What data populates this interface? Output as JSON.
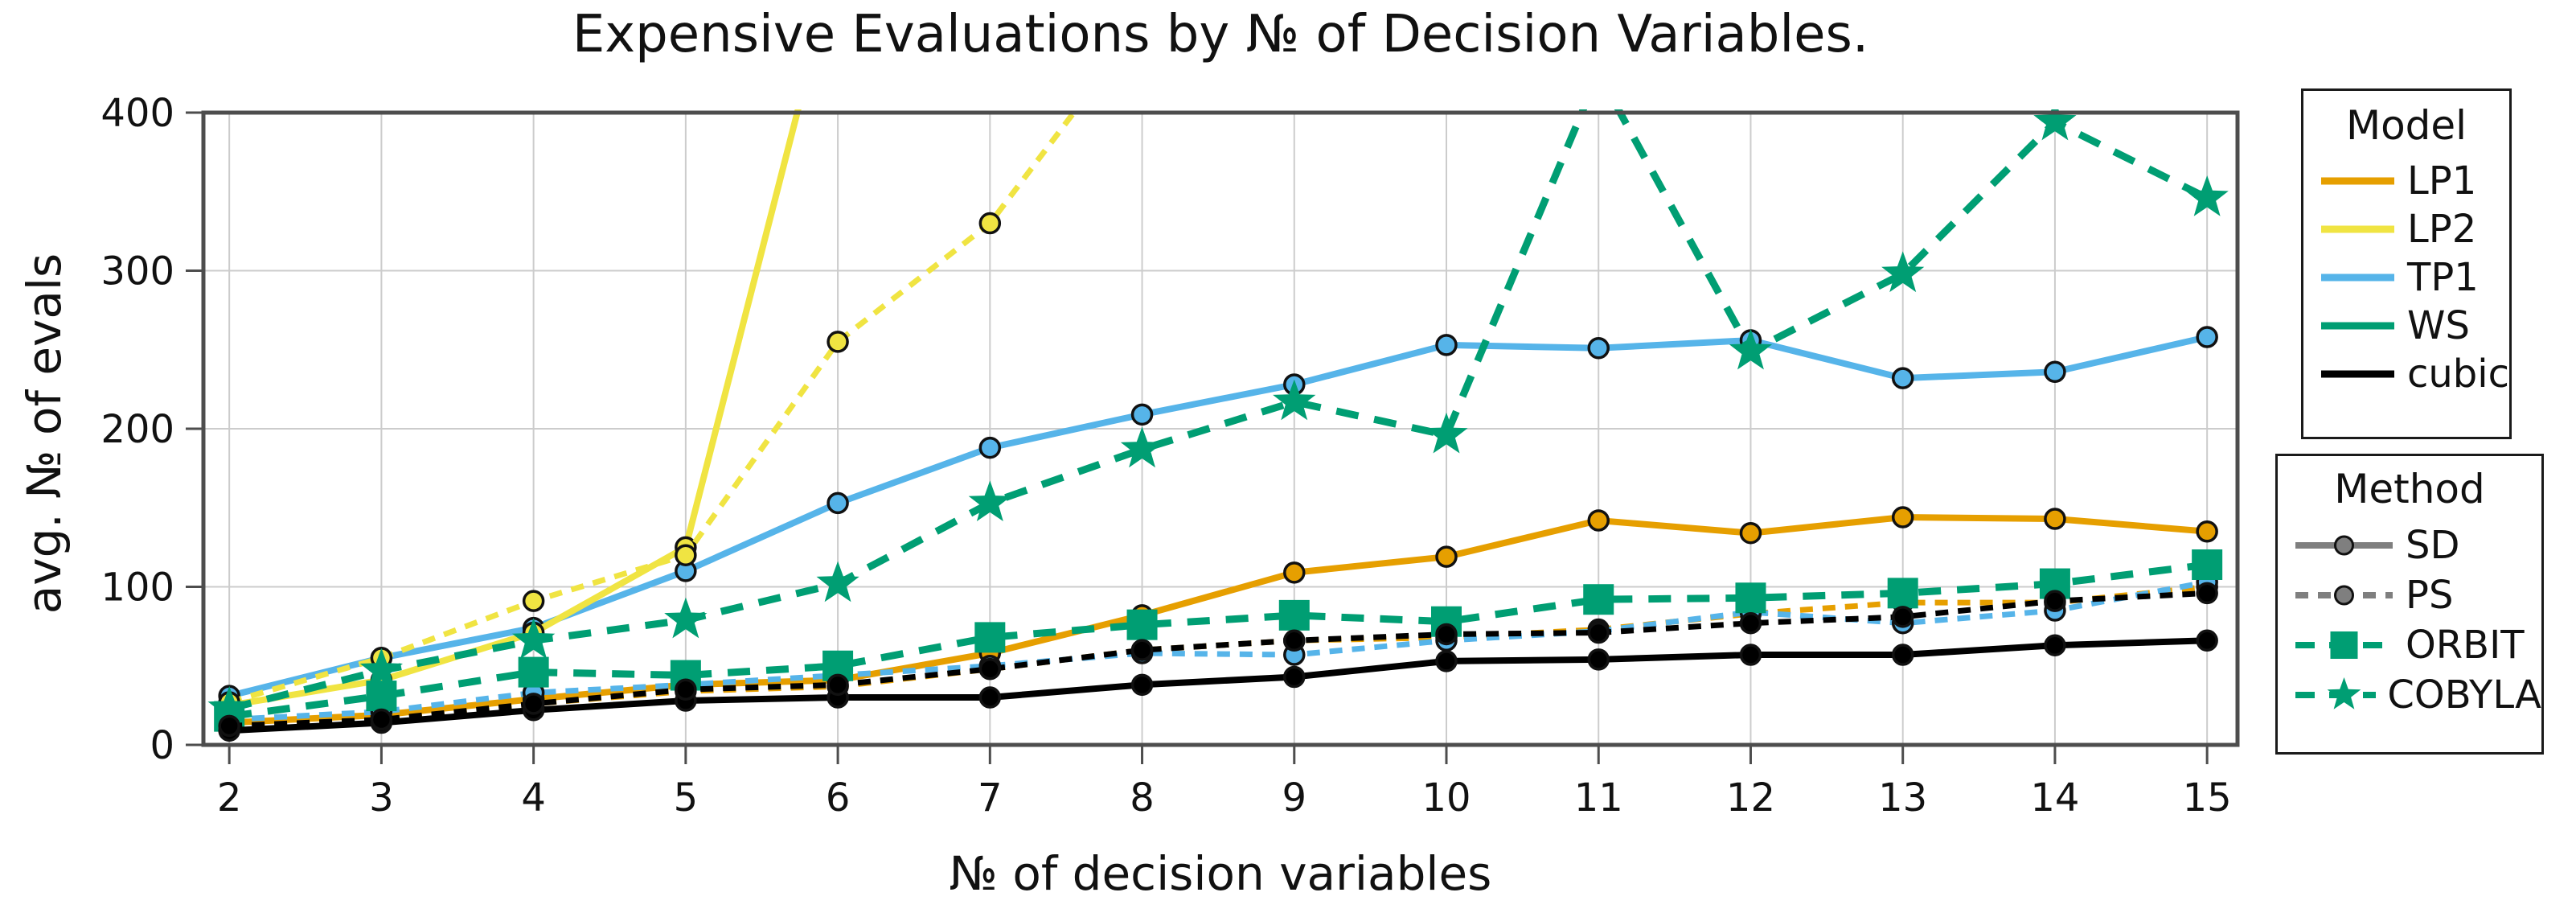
{
  "title": "Expensive Evaluations by № of Decision Variables.",
  "axes": {
    "xlabel": "№ of decision variables",
    "ylabel": "avg. № of evals",
    "x_ticks": [
      2,
      3,
      4,
      5,
      6,
      7,
      8,
      9,
      10,
      11,
      12,
      13,
      14,
      15
    ],
    "y_ticks": [
      0,
      100,
      200,
      300,
      400
    ],
    "xlim": [
      1.83,
      15.2
    ],
    "ylim": [
      0,
      400
    ]
  },
  "colors": {
    "LP1": "#E69F00",
    "LP2": "#F0E442",
    "TP1": "#56B4E9",
    "WS": "#009E73",
    "cubic": "#000000",
    "method_gray": "#7f7f7f",
    "grid": "#cccccc",
    "spine": "#4d4d4d"
  },
  "legends": {
    "model": {
      "title": "Model",
      "entries": [
        {
          "label": "LP1",
          "color": "#E69F00",
          "style": "solid",
          "marker": "none"
        },
        {
          "label": "LP2",
          "color": "#F0E442",
          "style": "solid",
          "marker": "none"
        },
        {
          "label": "TP1",
          "color": "#56B4E9",
          "style": "solid",
          "marker": "none"
        },
        {
          "label": "WS",
          "color": "#009E73",
          "style": "solid",
          "marker": "none"
        },
        {
          "label": "cubic",
          "color": "#000000",
          "style": "solid",
          "marker": "none"
        }
      ]
    },
    "method": {
      "title": "Method",
      "entries": [
        {
          "label": "SD",
          "color": "#7f7f7f",
          "style": "solid",
          "marker": "circle"
        },
        {
          "label": "PS",
          "color": "#7f7f7f",
          "style": "dashed",
          "marker": "circle"
        },
        {
          "label": "ORBIT",
          "color": "#009E73",
          "style": "dashed-long",
          "marker": "square"
        },
        {
          "label": "COBYLA",
          "color": "#009E73",
          "style": "dashed-long",
          "marker": "star"
        }
      ]
    }
  },
  "chart_data": {
    "type": "line",
    "x": [
      2,
      3,
      4,
      5,
      6,
      7,
      8,
      9,
      10,
      11,
      12,
      13,
      14,
      15
    ],
    "grid": true,
    "note_offscale": "values above 400 are clipped by the axes (LP2 curves and COBYLA at 11 leave the plot)",
    "series": [
      {
        "id": "tp1_sd",
        "label": "TP1 + SD",
        "model": "TP1",
        "method": "SD",
        "color": "#56B4E9",
        "style": "solid",
        "marker": "circle",
        "values": [
          31,
          55,
          74,
          110,
          153,
          188,
          209,
          228,
          253,
          251,
          256,
          232,
          236,
          258
        ]
      },
      {
        "id": "lp2_sd",
        "label": "LP2 + SD",
        "model": "LP2",
        "method": "SD",
        "color": "#F0E442",
        "style": "solid",
        "marker": "circle",
        "values": [
          25,
          41,
          71,
          125,
          500,
          null,
          null,
          null,
          null,
          null,
          null,
          null,
          null,
          null
        ]
      },
      {
        "id": "lp2_ps",
        "label": "LP2 + PS",
        "model": "LP2",
        "method": "PS",
        "color": "#F0E442",
        "style": "dashed",
        "marker": "circle",
        "values": [
          27,
          55,
          91,
          120,
          255,
          330,
          457,
          null,
          null,
          null,
          null,
          null,
          null,
          null
        ]
      },
      {
        "id": "lp1_sd",
        "label": "LP1 + SD",
        "model": "LP1",
        "method": "SD",
        "color": "#E69F00",
        "style": "solid",
        "marker": "circle",
        "values": [
          14,
          19,
          29,
          38,
          41,
          58,
          82,
          109,
          119,
          142,
          134,
          144,
          143,
          135
        ]
      },
      {
        "id": "lp1_ps",
        "label": "LP1 + PS",
        "model": "LP1",
        "method": "PS",
        "color": "#E69F00",
        "style": "dashed",
        "marker": "circle",
        "values": [
          13,
          17,
          26,
          34,
          37,
          48,
          60,
          66,
          68,
          73,
          83,
          90,
          90,
          100
        ]
      },
      {
        "id": "tp1_ps",
        "label": "TP1 + PS",
        "model": "TP1",
        "method": "PS",
        "color": "#56B4E9",
        "style": "dashed",
        "marker": "circle",
        "values": [
          16,
          21,
          33,
          38,
          44,
          50,
          58,
          57,
          66,
          72,
          84,
          77,
          85,
          103
        ]
      },
      {
        "id": "ws_orbit",
        "label": "ORBIT",
        "model": "WS",
        "method": "ORBIT",
        "color": "#009E73",
        "style": "dashed-long",
        "marker": "square",
        "values": [
          18,
          31,
          46,
          44,
          50,
          68,
          76,
          82,
          78,
          92,
          93,
          96,
          102,
          114
        ]
      },
      {
        "id": "ws_cobyla",
        "label": "COBYLA",
        "model": "WS",
        "method": "COBYLA",
        "color": "#009E73",
        "style": "dashed-long",
        "marker": "star",
        "values": [
          23,
          47,
          66,
          79,
          102,
          153,
          187,
          217,
          196,
          425,
          249,
          298,
          394,
          346
        ]
      },
      {
        "id": "cubic_sd",
        "label": "cubic + SD",
        "model": "cubic",
        "method": "SD",
        "color": "#000000",
        "style": "solid",
        "marker": "circle",
        "values": [
          9,
          14,
          22,
          28,
          30,
          30,
          38,
          43,
          53,
          54,
          57,
          57,
          63,
          66
        ]
      },
      {
        "id": "cubic_ps",
        "label": "cubic + PS",
        "model": "cubic",
        "method": "PS",
        "color": "#000000",
        "style": "dashed",
        "marker": "circle",
        "values": [
          12,
          16,
          26,
          35,
          38,
          48,
          60,
          66,
          70,
          71,
          77,
          81,
          91,
          96
        ]
      }
    ]
  }
}
